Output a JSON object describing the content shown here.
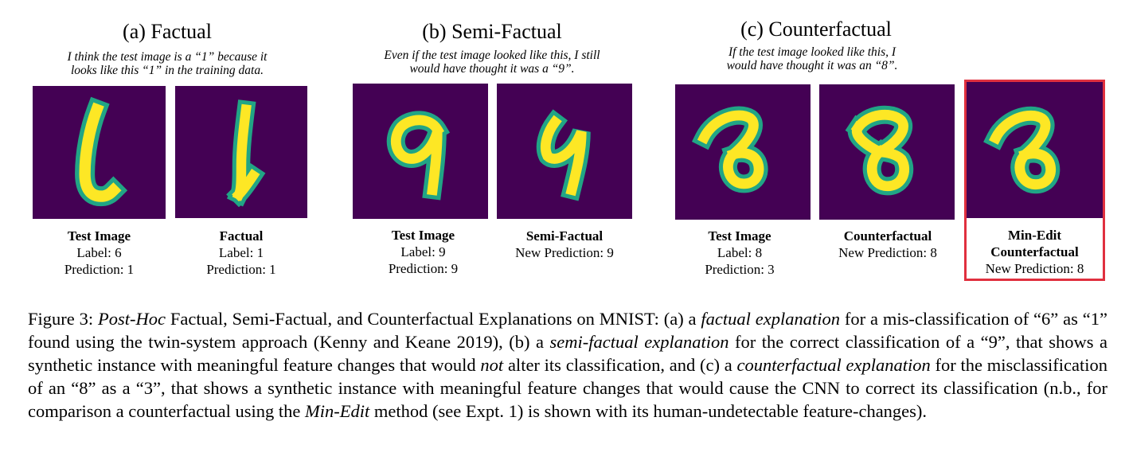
{
  "colors": {
    "background": "#440154",
    "stroke_outer": "#21a585",
    "stroke_inner": "#fde725",
    "highlight_border": "#e0303f"
  },
  "panels": [
    {
      "title": "(a) Factual",
      "note": [
        "I think the test image is a “1” because it",
        "looks like this “1” in the training data."
      ],
      "images": [
        {
          "name": "Test Image",
          "lines": [
            "Label: 6",
            "Prediction: 1"
          ],
          "digit": "6-as-1"
        },
        {
          "name": "Factual",
          "lines": [
            "Label: 1",
            "Prediction: 1"
          ],
          "digit": "1"
        }
      ]
    },
    {
      "title": "(b) Semi-Factual",
      "note": [
        "Even if the test image looked like this, I still",
        "would  have thought it was a “9”."
      ],
      "images": [
        {
          "name": "Test Image",
          "lines": [
            "Label: 9",
            "Prediction: 9"
          ],
          "digit": "9"
        },
        {
          "name": "Semi-Factual",
          "lines": [
            "New Prediction: 9"
          ],
          "digit": "9-semi"
        }
      ]
    },
    {
      "title": "(c) Counterfactual",
      "note": [
        "If the test image looked like this, I",
        "would have thought it was an “8”."
      ],
      "images": [
        {
          "name": "Test Image",
          "lines": [
            "Label: 8",
            "Prediction: 3"
          ],
          "digit": "8-as-3"
        },
        {
          "name": "Counterfactual",
          "lines": [
            "New Prediction: 8"
          ],
          "digit": "8-cf"
        },
        {
          "name": [
            "Min-Edit",
            "Counterfactual"
          ],
          "lines": [
            "New Prediction: 8"
          ],
          "digit": "8-minedit"
        }
      ]
    }
  ],
  "caption": {
    "label": "Figure 3: ",
    "segments": [
      {
        "t": "Post-Hoc",
        "i": true
      },
      {
        "t": " Factual, Semi-Factual, and Counterfactual Explanations on MNIST: (a) a "
      },
      {
        "t": "factual explanation",
        "i": true
      },
      {
        "t": " for a mis-classification of “6” as “1” found using the twin-system approach (Kenny and Keane 2019), (b) a "
      },
      {
        "t": "semi-factual explanation",
        "i": true
      },
      {
        "t": " for the correct classification of a “9”, that shows a synthetic instance with meaningful feature changes that would "
      },
      {
        "t": "not",
        "i": true
      },
      {
        "t": " alter its classification, and (c) a "
      },
      {
        "t": "counterfactual explanation",
        "i": true
      },
      {
        "t": " for the misclassification of an “8” as a “3”, that shows a synthetic instance with meaningful feature changes that would cause the CNN to correct its classification (n.b., for comparison a counterfactual using the "
      },
      {
        "t": "Min-Edit",
        "i": true
      },
      {
        "t": " method (see Expt. 1) is shown with its human-undetectable feature-changes)."
      }
    ]
  }
}
